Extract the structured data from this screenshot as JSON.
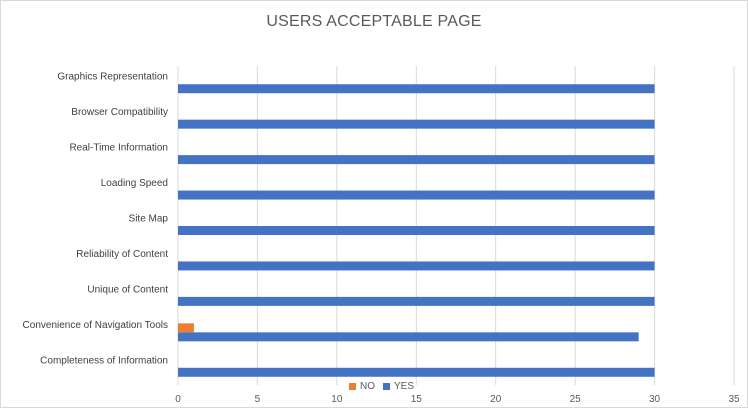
{
  "chart_data": {
    "type": "bar",
    "orientation": "horizontal",
    "title": "USERS ACCEPTABLE PAGE",
    "xlabel": "",
    "ylabel": "",
    "categories": [
      "Completeness of Information",
      "Convenience of Navigation Tools",
      "Unique of Content",
      "Reliability of Content",
      "Site Map",
      "Loading Speed",
      "Real-Time Information",
      "Browser Compatibility",
      "Graphics Representation"
    ],
    "series": [
      {
        "name": "YES",
        "color": "#4472c4",
        "values": [
          30,
          29,
          30,
          30,
          30,
          30,
          30,
          30,
          30
        ]
      },
      {
        "name": "NO",
        "color": "#ed7d31",
        "values": [
          0,
          1,
          0,
          0,
          0,
          0,
          0,
          0,
          0
        ]
      }
    ],
    "xlim": [
      0,
      35
    ],
    "xticks": [
      "0",
      "5",
      "10",
      "15",
      "20",
      "25",
      "30",
      "35"
    ],
    "grid": "vertical",
    "legend_position": "bottom",
    "legend": [
      "NO",
      "YES"
    ]
  }
}
